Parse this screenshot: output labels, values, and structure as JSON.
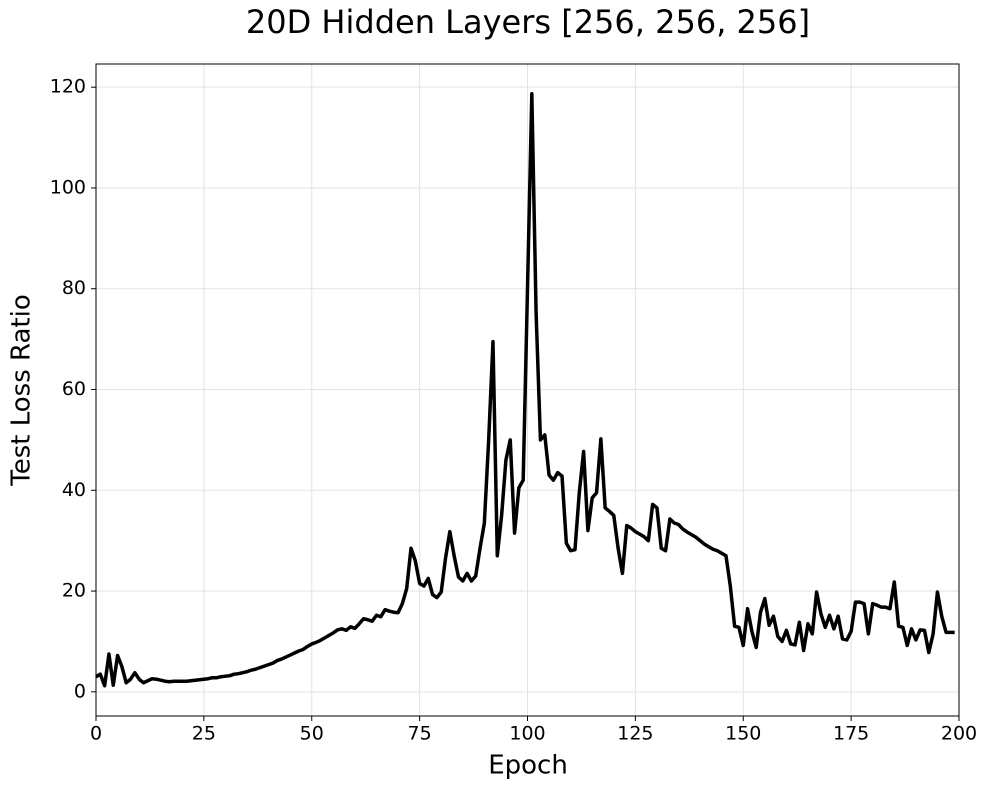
{
  "chart_data": {
    "type": "line",
    "title": "20D Hidden Layers [256, 256, 256]",
    "x_label": "Epoch",
    "y_label": "Test Loss Ratio",
    "x": [
      0,
      1,
      2,
      3,
      4,
      5,
      6,
      7,
      8,
      9,
      10,
      11,
      12,
      13,
      14,
      15,
      16,
      17,
      18,
      19,
      20,
      21,
      22,
      23,
      24,
      25,
      26,
      27,
      28,
      29,
      30,
      31,
      32,
      33,
      34,
      35,
      36,
      37,
      38,
      39,
      40,
      41,
      42,
      43,
      44,
      45,
      46,
      47,
      48,
      49,
      50,
      51,
      52,
      53,
      54,
      55,
      56,
      57,
      58,
      59,
      60,
      61,
      62,
      63,
      64,
      65,
      66,
      67,
      68,
      69,
      70,
      71,
      72,
      73,
      74,
      75,
      76,
      77,
      78,
      79,
      80,
      81,
      82,
      83,
      84,
      85,
      86,
      87,
      88,
      89,
      90,
      91,
      92,
      93,
      94,
      95,
      96,
      97,
      98,
      99,
      100,
      101,
      102,
      103,
      104,
      105,
      106,
      107,
      108,
      109,
      110,
      111,
      112,
      113,
      114,
      115,
      116,
      117,
      118,
      119,
      120,
      121,
      122,
      123,
      124,
      125,
      126,
      127,
      128,
      129,
      130,
      131,
      132,
      133,
      134,
      135,
      136,
      137,
      138,
      139,
      140,
      141,
      142,
      143,
      144,
      145,
      146,
      147,
      148,
      149,
      150,
      151,
      152,
      153,
      154,
      155,
      156,
      157,
      158,
      159,
      160,
      161,
      162,
      163,
      164,
      165,
      166,
      167,
      168,
      169,
      170,
      171,
      172,
      173,
      174,
      175,
      176,
      177,
      178,
      179,
      180,
      181,
      182,
      183,
      184,
      185,
      186,
      187,
      188,
      189,
      190,
      191,
      192,
      193,
      194,
      195,
      196,
      197,
      198,
      199
    ],
    "series": [
      {
        "name": "Test Loss Ratio",
        "color": "#000000",
        "values": [
          3,
          3.5,
          1.2,
          7.5,
          1.3,
          7.2,
          5,
          1.8,
          2.5,
          3.8,
          2.5,
          1.8,
          2.2,
          2.6,
          2.5,
          2.3,
          2.1,
          2.0,
          2.1,
          2.1,
          2.1,
          2.1,
          2.2,
          2.3,
          2.4,
          2.5,
          2.6,
          2.8,
          2.8,
          3.0,
          3.1,
          3.2,
          3.5,
          3.6,
          3.8,
          4.0,
          4.3,
          4.5,
          4.8,
          5.1,
          5.4,
          5.7,
          6.2,
          6.5,
          6.9,
          7.3,
          7.7,
          8.1,
          8.4,
          9.0,
          9.5,
          9.8,
          10.2,
          10.7,
          11.2,
          11.7,
          12.3,
          12.5,
          12.2,
          12.9,
          12.6,
          13.5,
          14.5,
          14.3,
          14.0,
          15.2,
          14.9,
          16.3,
          16.0,
          15.8,
          15.7,
          17.5,
          20.5,
          28.5,
          26,
          21.5,
          21,
          22.5,
          19.3,
          18.7,
          19.8,
          26.5,
          31.8,
          27,
          22.8,
          22,
          23.5,
          22,
          23,
          28.5,
          33.5,
          50,
          69.5,
          27,
          35,
          46,
          50,
          31.5,
          40.5,
          42,
          80,
          118.7,
          75,
          50,
          51,
          43,
          42,
          43.5,
          42.8,
          29.5,
          28,
          28.2,
          39.5,
          47.7,
          32,
          38.5,
          39.5,
          50.2,
          36.5,
          35.8,
          35,
          28.5,
          23.5,
          33,
          32.5,
          31.8,
          31.3,
          30.8,
          30,
          37.2,
          36.5,
          28.5,
          28,
          34.3,
          33.5,
          33.2,
          32.3,
          31.7,
          31.2,
          30.7,
          30,
          29.3,
          28.8,
          28.3,
          28,
          27.5,
          27,
          21,
          13,
          12.8,
          9.2,
          16.5,
          12,
          8.8,
          15.8,
          18.5,
          13.2,
          15,
          11,
          10,
          12.2,
          9.5,
          9.3,
          13.8,
          8.2,
          13.5,
          11.5,
          19.8,
          15.5,
          12.8,
          15.2,
          12.5,
          15,
          10.5,
          10.3,
          12,
          17.8,
          17.8,
          17.5,
          11.5,
          17.5,
          17.2,
          16.8,
          16.8,
          16.5,
          21.8,
          13,
          12.8,
          9.2,
          12.5,
          10.3,
          12.3,
          12.2,
          7.8,
          11.5,
          19.8,
          15,
          11.8,
          11.8,
          11.8
        ]
      }
    ],
    "xlim": [
      0,
      200
    ],
    "ylim": [
      -4.8,
      124.6
    ],
    "xticks": [
      0,
      25,
      50,
      75,
      100,
      125,
      150,
      175,
      200
    ],
    "yticks": [
      0,
      20,
      40,
      60,
      80,
      100,
      120
    ],
    "grid": true
  }
}
